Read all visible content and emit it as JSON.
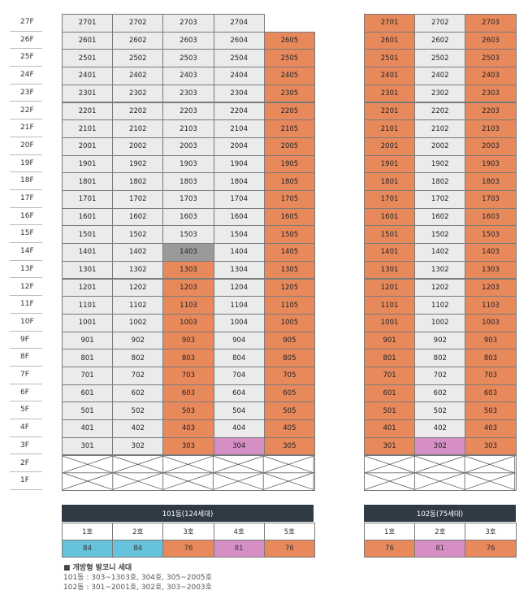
{
  "floors": [
    "27F",
    "26F",
    "25F",
    "24F",
    "23F",
    "22F",
    "21F",
    "20F",
    "19F",
    "18F",
    "17F",
    "16F",
    "15F",
    "14F",
    "13F",
    "12F",
    "11F",
    "10F",
    "9F",
    "8F",
    "7F",
    "6F",
    "5F",
    "4F",
    "3F",
    "2F",
    "1F"
  ],
  "building101": {
    "title": "101동(124세대)",
    "lines": [
      "1호",
      "2호",
      "3호",
      "4호",
      "5호"
    ],
    "areas": [
      "84",
      "84",
      "76",
      "81",
      "76"
    ],
    "area_colors": [
      "blue",
      "blue",
      "orange",
      "pink",
      "orange"
    ]
  },
  "building102": {
    "title": "102동(75세대)",
    "lines": [
      "1호",
      "2호",
      "3호"
    ],
    "areas": [
      "76",
      "81",
      "76"
    ],
    "area_colors": [
      "orange",
      "pink",
      "orange"
    ]
  },
  "colors": {
    "gray": "#ebebeb",
    "orange": "#e8895c",
    "pink": "#d68fc5",
    "dark": "#9a9a9a",
    "blue": "#67c2dc",
    "header": "#2f3a44"
  },
  "legend": {
    "title": "■ 개방형 발코니 세대",
    "line1": "101동 : 303~1303호, 304호, 305~2005호",
    "line2": "102동 : 301~2001호, 302호, 303~2003호"
  }
}
